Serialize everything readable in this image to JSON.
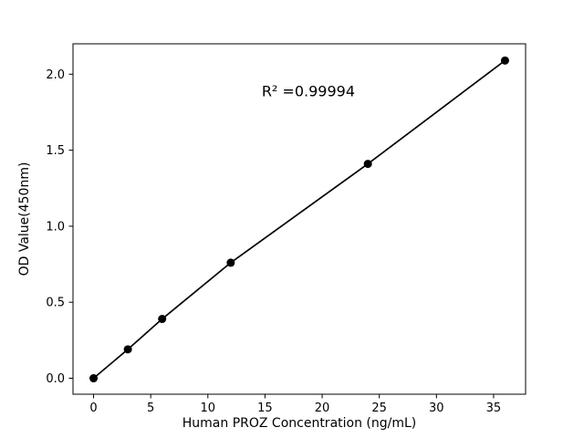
{
  "chart_data": {
    "type": "scatter",
    "x": [
      0,
      3,
      6,
      12,
      24,
      36
    ],
    "y": [
      0.0,
      0.19,
      0.39,
      0.76,
      1.41,
      2.09
    ],
    "title": "",
    "xlabel": "Human PROZ Concentration (ng/mL)",
    "ylabel": "OD Value(450nm)",
    "xlim": [
      -1.8,
      37.8
    ],
    "ylim": [
      -0.105,
      2.2
    ],
    "xticks": [
      0,
      5,
      10,
      15,
      20,
      25,
      30,
      35
    ],
    "yticks": [
      0,
      0.5,
      1,
      1.5,
      2
    ],
    "annotation": "R² =0.99994",
    "grid": false,
    "legend": "none",
    "line_color": "#000000",
    "marker_color": "#000000",
    "axis_color": "#000000",
    "background_color": "#ffffff"
  }
}
